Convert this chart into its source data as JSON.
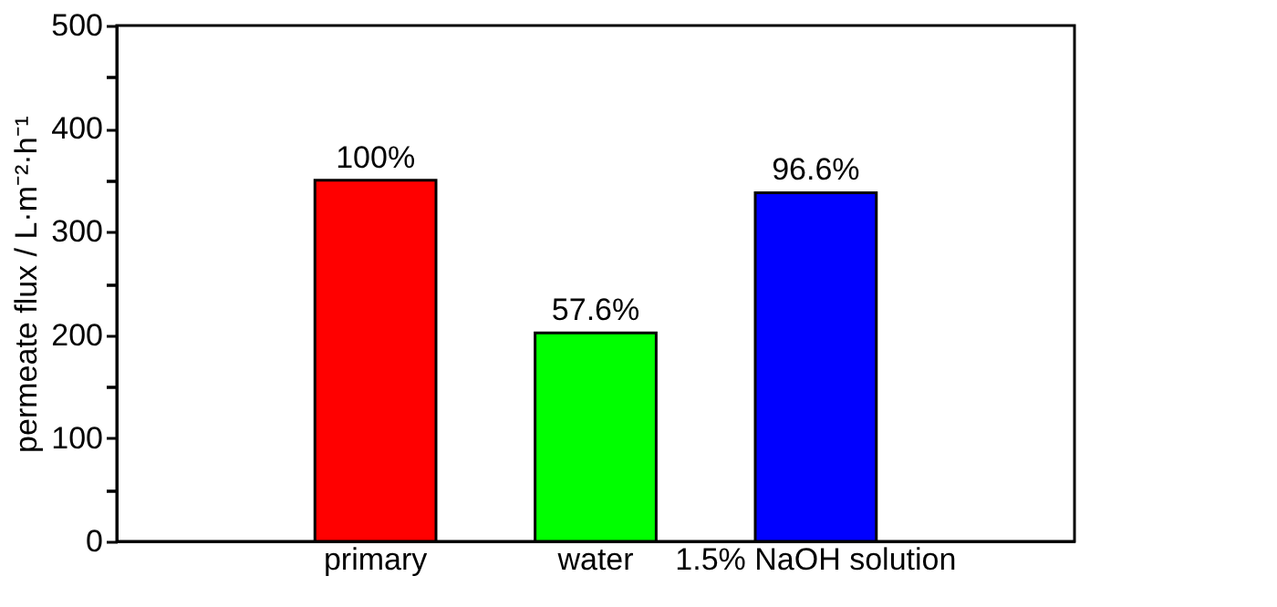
{
  "chart_data": {
    "type": "bar",
    "ylabel": "permeate flux / L·m⁻²·h⁻¹",
    "categories": [
      "primary",
      "water",
      "1.5% NaOH solution"
    ],
    "values": [
      350,
      202,
      338
    ],
    "colors": [
      "#ff0000",
      "#00ff00",
      "#0000ff"
    ],
    "annotations": [
      {
        "text": "100%",
        "x": "primary",
        "y": 350
      },
      {
        "text": "57.6%",
        "x": "water",
        "y": 202
      },
      {
        "text": "96.6%",
        "x": "1.5% NaOH solution",
        "y": 338
      }
    ],
    "ylim": [
      0,
      500
    ],
    "yticks": [
      0,
      {
        "value": 50,
        "label": null
      },
      100,
      {
        "value": 150,
        "label": null
      },
      200,
      {
        "value": 250,
        "label": null
      },
      300,
      {
        "value": 350,
        "label": null
      },
      400,
      {
        "value": 450,
        "label": null
      },
      500
    ],
    "grid": false,
    "legend": false
  }
}
